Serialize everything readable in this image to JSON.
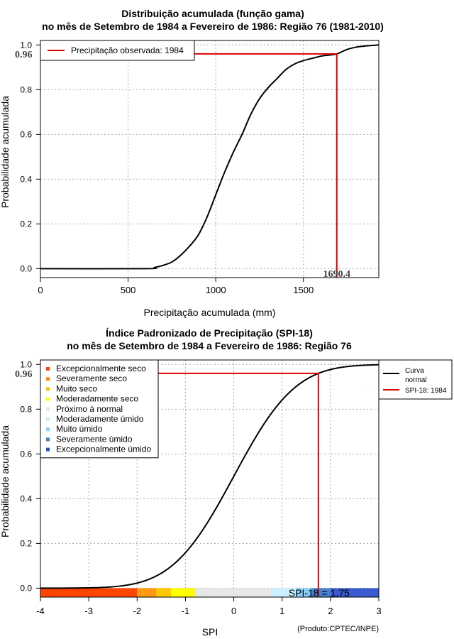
{
  "chart_data": [
    {
      "type": "line",
      "title": "Distribuição acumulada (função gama)",
      "subtitle": "no mês de Setembro de 1984 a Fevereiro de 1986: Região 76 (1981-2010)",
      "xlabel": "Precipitação acumulada (mm)",
      "ylabel": "Probabilidade acumulada",
      "xlim": [
        0,
        1930
      ],
      "ylim": [
        -0.04,
        1.02
      ],
      "xticks": [
        "0",
        "500",
        "1000",
        "1500"
      ],
      "xtick_values": [
        0,
        500,
        1000,
        1500
      ],
      "yticks": [
        "0.0",
        "0.2",
        "0.4",
        "0.6",
        "0.8",
        "1.0"
      ],
      "ytick_values": [
        0,
        0.2,
        0.4,
        0.6,
        0.8,
        1.0
      ],
      "grid": true,
      "legend_position": "top-left",
      "series": [
        {
          "name": "Distribuição acumulada",
          "x": [
            0,
            600,
            650,
            700,
            750,
            800,
            850,
            900,
            950,
            1000,
            1050,
            1100,
            1150,
            1200,
            1250,
            1300,
            1350,
            1400,
            1450,
            1500,
            1550,
            1600,
            1650,
            1690.4,
            1750,
            1800,
            1850,
            1930
          ],
          "y": [
            0,
            0,
            0.005,
            0.015,
            0.03,
            0.06,
            0.1,
            0.15,
            0.23,
            0.33,
            0.43,
            0.52,
            0.6,
            0.69,
            0.76,
            0.81,
            0.85,
            0.89,
            0.915,
            0.93,
            0.94,
            0.95,
            0.955,
            0.96,
            0.98,
            0.99,
            0.995,
            1.0
          ]
        }
      ],
      "observed": {
        "legend_label": "Precipitação observada: 1984",
        "x": 1690.4,
        "y": 0.96,
        "x_label": "1690.4",
        "y_label": "0.96"
      }
    },
    {
      "type": "line",
      "title": "Índice Padronizado de Precipitação (SPI-18)",
      "subtitle": "no mês de Setembro de 1984 a Fevereiro de 1986: Região 76",
      "xlabel": "SPI",
      "ylabel": "Probabilidade acumulada",
      "xlim": [
        -4,
        3
      ],
      "ylim": [
        -0.04,
        1.02
      ],
      "xticks": [
        "-4",
        "-3",
        "-2",
        "-1",
        "0",
        "1",
        "2",
        "3"
      ],
      "xtick_values": [
        -4,
        -3,
        -2,
        -1,
        0,
        1,
        2,
        3
      ],
      "yticks": [
        "0.0",
        "0.2",
        "0.4",
        "0.6",
        "0.8",
        "1.0"
      ],
      "ytick_values": [
        0,
        0.2,
        0.4,
        0.6,
        0.8,
        1.0
      ],
      "grid": true,
      "curve_legend": "Curva normal",
      "curve_legend_lines": [
        "Curva",
        "normal"
      ],
      "spi_legend": "SPI-18: 1984",
      "spi_value": 1.75,
      "spi_label": "SPI-18 = 1.75",
      "y_label": "0.96",
      "categories_legend": [
        {
          "label": "Excepcionalmente seco",
          "color": "#ff4500"
        },
        {
          "label": "Severamente seco",
          "color": "#ff8c00"
        },
        {
          "label": "Muito seco",
          "color": "#ffc000"
        },
        {
          "label": "Moderadamente seco",
          "color": "#ffff00"
        },
        {
          "label": "Próximo à normal",
          "color": "#e6e6e6"
        },
        {
          "label": "Moderadamente úmido",
          "color": "#c8f0ff"
        },
        {
          "label": "Muito úmido",
          "color": "#87cefa"
        },
        {
          "label": "Severamente úmido",
          "color": "#4682b4"
        },
        {
          "label": "Excepcionalmente úmido",
          "color": "#3050c8"
        }
      ],
      "color_bar": [
        {
          "from": -4,
          "to": -2,
          "color": "#ff4500"
        },
        {
          "from": -2,
          "to": -1.6,
          "color": "#ff9a10"
        },
        {
          "from": -1.6,
          "to": -1.3,
          "color": "#ffc800"
        },
        {
          "from": -1.3,
          "to": -0.8,
          "color": "#ffff00"
        },
        {
          "from": -0.8,
          "to": 0.8,
          "color": "#e6e6e6"
        },
        {
          "from": 0.8,
          "to": 1.3,
          "color": "#c8f0ff"
        },
        {
          "from": 1.3,
          "to": 1.6,
          "color": "#87cefa"
        },
        {
          "from": 1.6,
          "to": 2.0,
          "color": "#4682d2"
        },
        {
          "from": 2.0,
          "to": 3.0,
          "color": "#3a5ad0"
        }
      ],
      "credit": "(Produto:CPTEC/INPE)"
    }
  ]
}
